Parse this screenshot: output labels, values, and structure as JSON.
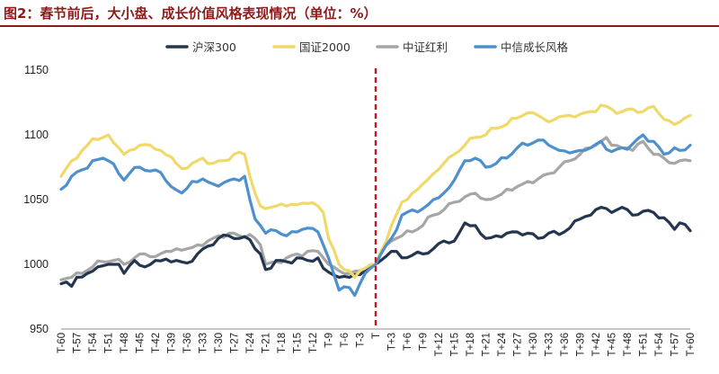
{
  "chart_data": {
    "type": "line",
    "title": "图2：春节前后，大小盘、成长价值风格表现情况（单位：%）",
    "xlabel": "",
    "ylabel": "",
    "ylim": [
      950,
      1150
    ],
    "yticks": [
      950,
      1000,
      1050,
      1100,
      1150
    ],
    "x_start": -60,
    "x_end": 60,
    "x_tick_step": 3,
    "event_x": 0,
    "event_line_color": "#c0191f",
    "grid": false,
    "legend_position": "top",
    "series": [
      {
        "name": "沪深300",
        "color": "#24364f",
        "anchors": [
          [
            -60,
            985
          ],
          [
            -58,
            983
          ],
          [
            -57,
            990
          ],
          [
            -55,
            993
          ],
          [
            -53,
            998
          ],
          [
            -51,
            1000
          ],
          [
            -50,
            1000
          ],
          [
            -49,
            1000
          ],
          [
            -48,
            993
          ],
          [
            -46,
            1003
          ],
          [
            -44,
            998
          ],
          [
            -42,
            1003
          ],
          [
            -40,
            1004
          ],
          [
            -38,
            1003
          ],
          [
            -36,
            1001
          ],
          [
            -34,
            1008
          ],
          [
            -32,
            1014
          ],
          [
            -30,
            1020
          ],
          [
            -28,
            1022
          ],
          [
            -26,
            1020
          ],
          [
            -24,
            1019
          ],
          [
            -23,
            1012
          ],
          [
            -22,
            1008
          ],
          [
            -21,
            996
          ],
          [
            -19,
            1003
          ],
          [
            -17,
            1002
          ],
          [
            -15,
            1005
          ],
          [
            -13,
            1003
          ],
          [
            -11,
            1005
          ],
          [
            -10,
            997
          ],
          [
            -9,
            994
          ],
          [
            -7,
            990
          ],
          [
            -5,
            990
          ],
          [
            -3,
            992
          ],
          [
            -1,
            998
          ],
          [
            0,
            1000
          ],
          [
            1,
            1003
          ],
          [
            3,
            1010
          ],
          [
            5,
            1005
          ],
          [
            7,
            1007
          ],
          [
            9,
            1008
          ],
          [
            11,
            1012
          ],
          [
            13,
            1018
          ],
          [
            15,
            1018
          ],
          [
            17,
            1032
          ],
          [
            19,
            1030
          ],
          [
            21,
            1020
          ],
          [
            23,
            1022
          ],
          [
            25,
            1024
          ],
          [
            27,
            1025
          ],
          [
            29,
            1024
          ],
          [
            31,
            1020
          ],
          [
            33,
            1024
          ],
          [
            35,
            1023
          ],
          [
            37,
            1028
          ],
          [
            39,
            1035
          ],
          [
            41,
            1038
          ],
          [
            43,
            1044
          ],
          [
            45,
            1040
          ],
          [
            47,
            1044
          ],
          [
            49,
            1038
          ],
          [
            51,
            1041
          ],
          [
            53,
            1040
          ],
          [
            55,
            1036
          ],
          [
            57,
            1027
          ],
          [
            58,
            1032
          ],
          [
            60,
            1026
          ]
        ]
      },
      {
        "name": "国证2000",
        "color": "#f0d96b",
        "anchors": [
          [
            -60,
            1068
          ],
          [
            -58,
            1080
          ],
          [
            -56,
            1088
          ],
          [
            -54,
            1097
          ],
          [
            -52,
            1098
          ],
          [
            -51,
            1100
          ],
          [
            -49,
            1090
          ],
          [
            -48,
            1085
          ],
          [
            -47,
            1088
          ],
          [
            -45,
            1092
          ],
          [
            -43,
            1092
          ],
          [
            -41,
            1088
          ],
          [
            -39,
            1083
          ],
          [
            -37,
            1074
          ],
          [
            -35,
            1078
          ],
          [
            -33,
            1082
          ],
          [
            -31,
            1078
          ],
          [
            -29,
            1080
          ],
          [
            -27,
            1085
          ],
          [
            -25,
            1085
          ],
          [
            -24,
            1068
          ],
          [
            -23,
            1055
          ],
          [
            -22,
            1045
          ],
          [
            -21,
            1043
          ],
          [
            -19,
            1045
          ],
          [
            -17,
            1045
          ],
          [
            -15,
            1046
          ],
          [
            -13,
            1047
          ],
          [
            -11,
            1045
          ],
          [
            -10,
            1040
          ],
          [
            -9,
            1020
          ],
          [
            -7,
            1000
          ],
          [
            -5,
            995
          ],
          [
            -4,
            990
          ],
          [
            -3,
            995
          ],
          [
            -2,
            997
          ],
          [
            0,
            1000
          ],
          [
            1,
            1010
          ],
          [
            3,
            1030
          ],
          [
            5,
            1048
          ],
          [
            7,
            1055
          ],
          [
            9,
            1062
          ],
          [
            11,
            1070
          ],
          [
            13,
            1078
          ],
          [
            15,
            1085
          ],
          [
            17,
            1092
          ],
          [
            19,
            1098
          ],
          [
            21,
            1100
          ],
          [
            23,
            1105
          ],
          [
            25,
            1108
          ],
          [
            27,
            1113
          ],
          [
            29,
            1117
          ],
          [
            31,
            1115
          ],
          [
            33,
            1110
          ],
          [
            35,
            1114
          ],
          [
            37,
            1115
          ],
          [
            39,
            1116
          ],
          [
            41,
            1118
          ],
          [
            43,
            1123
          ],
          [
            45,
            1120
          ],
          [
            47,
            1118
          ],
          [
            49,
            1120
          ],
          [
            51,
            1118
          ],
          [
            53,
            1122
          ],
          [
            55,
            1112
          ],
          [
            57,
            1108
          ],
          [
            58,
            1110
          ],
          [
            60,
            1115
          ]
        ]
      },
      {
        "name": "中证红利",
        "color": "#a6a6a6",
        "anchors": [
          [
            -60,
            988
          ],
          [
            -58,
            990
          ],
          [
            -56,
            993
          ],
          [
            -54,
            998
          ],
          [
            -52,
            1002
          ],
          [
            -50,
            1003
          ],
          [
            -48,
            1000
          ],
          [
            -46,
            1005
          ],
          [
            -44,
            1008
          ],
          [
            -42,
            1006
          ],
          [
            -40,
            1010
          ],
          [
            -38,
            1012
          ],
          [
            -36,
            1012
          ],
          [
            -34,
            1015
          ],
          [
            -32,
            1018
          ],
          [
            -30,
            1022
          ],
          [
            -28,
            1024
          ],
          [
            -26,
            1022
          ],
          [
            -24,
            1023
          ],
          [
            -23,
            1020
          ],
          [
            -22,
            1015
          ],
          [
            -21,
            1000
          ],
          [
            -19,
            1002
          ],
          [
            -17,
            1005
          ],
          [
            -15,
            1008
          ],
          [
            -13,
            1010
          ],
          [
            -11,
            1010
          ],
          [
            -10,
            1005
          ],
          [
            -9,
            1000
          ],
          [
            -7,
            995
          ],
          [
            -5,
            993
          ],
          [
            -3,
            995
          ],
          [
            -1,
            998
          ],
          [
            0,
            1000
          ],
          [
            1,
            1008
          ],
          [
            3,
            1018
          ],
          [
            5,
            1022
          ],
          [
            7,
            1025
          ],
          [
            9,
            1030
          ],
          [
            11,
            1038
          ],
          [
            13,
            1042
          ],
          [
            15,
            1048
          ],
          [
            17,
            1052
          ],
          [
            19,
            1055
          ],
          [
            21,
            1050
          ],
          [
            23,
            1052
          ],
          [
            25,
            1058
          ],
          [
            27,
            1060
          ],
          [
            29,
            1064
          ],
          [
            31,
            1066
          ],
          [
            33,
            1070
          ],
          [
            35,
            1075
          ],
          [
            37,
            1080
          ],
          [
            39,
            1085
          ],
          [
            41,
            1090
          ],
          [
            42,
            1092
          ],
          [
            43,
            1095
          ],
          [
            44,
            1098
          ],
          [
            45,
            1092
          ],
          [
            47,
            1090
          ],
          [
            49,
            1088
          ],
          [
            51,
            1095
          ],
          [
            53,
            1085
          ],
          [
            55,
            1082
          ],
          [
            57,
            1078
          ],
          [
            58,
            1080
          ],
          [
            60,
            1080
          ]
        ]
      },
      {
        "name": "中信成长风格",
        "color": "#4d90cb",
        "anchors": [
          [
            -60,
            1058
          ],
          [
            -58,
            1068
          ],
          [
            -56,
            1073
          ],
          [
            -54,
            1080
          ],
          [
            -52,
            1082
          ],
          [
            -51,
            1080
          ],
          [
            -49,
            1070
          ],
          [
            -48,
            1065
          ],
          [
            -47,
            1070
          ],
          [
            -45,
            1075
          ],
          [
            -43,
            1072
          ],
          [
            -41,
            1071
          ],
          [
            -39,
            1060
          ],
          [
            -37,
            1055
          ],
          [
            -35,
            1064
          ],
          [
            -33,
            1066
          ],
          [
            -31,
            1062
          ],
          [
            -29,
            1063
          ],
          [
            -27,
            1066
          ],
          [
            -25,
            1068
          ],
          [
            -24,
            1050
          ],
          [
            -23,
            1035
          ],
          [
            -22,
            1030
          ],
          [
            -21,
            1024
          ],
          [
            -19,
            1026
          ],
          [
            -17,
            1022
          ],
          [
            -15,
            1025
          ],
          [
            -13,
            1028
          ],
          [
            -11,
            1025
          ],
          [
            -10,
            1015
          ],
          [
            -9,
            1005
          ],
          [
            -7,
            980
          ],
          [
            -5,
            982
          ],
          [
            -4,
            976
          ],
          [
            -3,
            985
          ],
          [
            -2,
            993
          ],
          [
            0,
            1000
          ],
          [
            1,
            1008
          ],
          [
            3,
            1020
          ],
          [
            5,
            1038
          ],
          [
            7,
            1042
          ],
          [
            9,
            1043
          ],
          [
            11,
            1050
          ],
          [
            13,
            1055
          ],
          [
            15,
            1065
          ],
          [
            17,
            1080
          ],
          [
            19,
            1082
          ],
          [
            21,
            1075
          ],
          [
            23,
            1078
          ],
          [
            25,
            1082
          ],
          [
            27,
            1090
          ],
          [
            29,
            1092
          ],
          [
            31,
            1096
          ],
          [
            33,
            1092
          ],
          [
            35,
            1088
          ],
          [
            37,
            1086
          ],
          [
            39,
            1088
          ],
          [
            41,
            1090
          ],
          [
            43,
            1095
          ],
          [
            45,
            1087
          ],
          [
            47,
            1090
          ],
          [
            49,
            1093
          ],
          [
            51,
            1100
          ],
          [
            53,
            1095
          ],
          [
            55,
            1085
          ],
          [
            57,
            1090
          ],
          [
            58,
            1088
          ],
          [
            60,
            1092
          ]
        ]
      }
    ]
  }
}
